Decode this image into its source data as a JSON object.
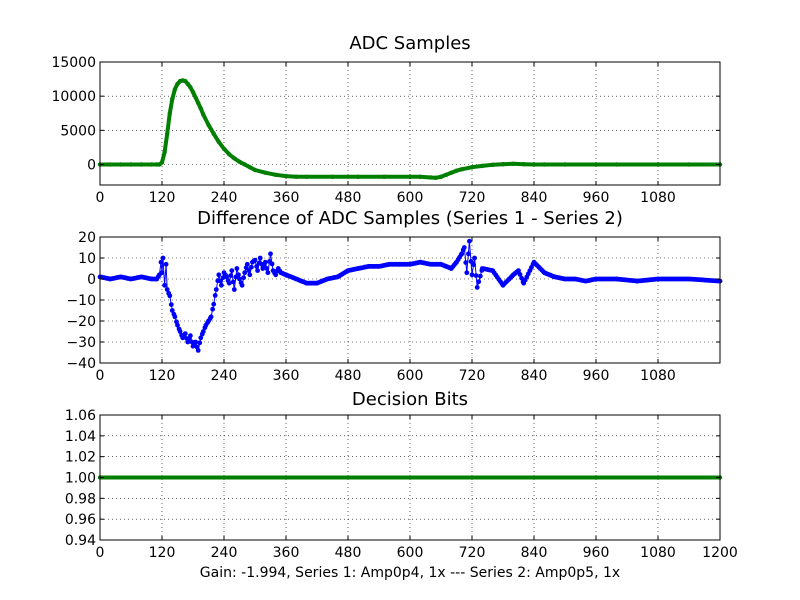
{
  "chart_data": [
    {
      "type": "line",
      "title": "ADC Samples",
      "xlabel": "",
      "ylabel": "",
      "xlim": [
        0,
        1200
      ],
      "ylim": [
        -3000,
        15000
      ],
      "xticks": [
        "0",
        "120",
        "240",
        "360",
        "480",
        "600",
        "720",
        "840",
        "960",
        "1080"
      ],
      "yticks": [
        "0",
        "5000",
        "10000",
        "15000"
      ],
      "grid": true,
      "series": [
        {
          "name": "ADC samples",
          "color": "#007f00",
          "marker": "dot",
          "x": [
            0,
            20,
            40,
            60,
            80,
            100,
            110,
            115,
            120,
            125,
            130,
            135,
            140,
            145,
            150,
            155,
            160,
            165,
            170,
            175,
            180,
            185,
            190,
            195,
            200,
            210,
            220,
            230,
            240,
            250,
            260,
            270,
            280,
            290,
            300,
            320,
            340,
            360,
            380,
            400,
            450,
            500,
            550,
            600,
            620,
            640,
            650,
            660,
            670,
            680,
            690,
            700,
            720,
            740,
            760,
            780,
            800,
            820,
            840,
            860,
            900,
            960,
            1000,
            1080,
            1140,
            1200
          ],
          "y": [
            0,
            0,
            0,
            0,
            0,
            0,
            0,
            0,
            300,
            1800,
            4500,
            7500,
            9600,
            11000,
            11800,
            12200,
            12300,
            12200,
            11800,
            11300,
            10600,
            9800,
            9000,
            8200,
            7300,
            5800,
            4500,
            3300,
            2300,
            1500,
            900,
            400,
            0,
            -400,
            -800,
            -1200,
            -1500,
            -1700,
            -1800,
            -1800,
            -1800,
            -1800,
            -1800,
            -1800,
            -1800,
            -1900,
            -1950,
            -1800,
            -1500,
            -1200,
            -900,
            -700,
            -400,
            -200,
            -50,
            50,
            100,
            50,
            0,
            0,
            0,
            0,
            0,
            0,
            0,
            0
          ]
        }
      ]
    },
    {
      "type": "line",
      "title": "Difference of ADC Samples (Series 1 - Series 2)",
      "xlabel": "",
      "ylabel": "",
      "xlim": [
        0,
        1200
      ],
      "ylim": [
        -40,
        20
      ],
      "xticks": [
        "0",
        "120",
        "240",
        "360",
        "480",
        "600",
        "720",
        "840",
        "960",
        "1080"
      ],
      "yticks": [
        "−40",
        "−30",
        "−20",
        "−10",
        "0",
        "10",
        "20"
      ],
      "grid": true,
      "series": [
        {
          "name": "Series 1 - Series 2",
          "color": "#0000ff",
          "marker": "dot",
          "x": [
            0,
            20,
            40,
            60,
            80,
            100,
            110,
            115,
            118,
            120,
            122,
            125,
            128,
            130,
            135,
            140,
            145,
            150,
            155,
            160,
            165,
            170,
            175,
            180,
            185,
            190,
            195,
            200,
            205,
            210,
            215,
            220,
            225,
            230,
            235,
            240,
            245,
            250,
            255,
            260,
            265,
            270,
            275,
            280,
            285,
            290,
            295,
            300,
            305,
            310,
            315,
            320,
            325,
            330,
            335,
            340,
            345,
            350,
            360,
            380,
            400,
            420,
            440,
            460,
            480,
            500,
            520,
            540,
            560,
            580,
            600,
            620,
            640,
            660,
            670,
            680,
            690,
            700,
            705,
            710,
            715,
            720,
            725,
            730,
            740,
            760,
            780,
            800,
            810,
            820,
            840,
            860,
            880,
            900,
            920,
            940,
            960,
            1000,
            1040,
            1080,
            1140,
            1200
          ],
          "y": [
            1,
            0,
            1,
            0,
            1,
            0,
            0,
            2,
            8,
            3,
            10,
            -3,
            7,
            -5,
            -8,
            -15,
            -18,
            -22,
            -25,
            -28,
            -26,
            -30,
            -27,
            -32,
            -30,
            -34,
            -28,
            -25,
            -22,
            -20,
            -18,
            -12,
            -5,
            2,
            -3,
            3,
            1,
            -2,
            4,
            -5,
            5,
            0,
            -3,
            3,
            7,
            2,
            8,
            9,
            4,
            10,
            5,
            8,
            3,
            12,
            4,
            2,
            5,
            3,
            2,
            0,
            -2,
            -2,
            0,
            1,
            4,
            5,
            6,
            6,
            7,
            7,
            7,
            8,
            7,
            7,
            6,
            5,
            8,
            12,
            15,
            3,
            18,
            2,
            10,
            -4,
            5,
            4,
            -3,
            2,
            4,
            -2,
            8,
            3,
            1,
            0,
            0,
            -1,
            0,
            0,
            -1,
            0,
            0,
            -1
          ]
        }
      ]
    },
    {
      "type": "line",
      "title": "Decision Bits",
      "xlabel": "Gain: -1.994, Series 1: Amp0p4, 1x --- Series 2: Amp0p5, 1x",
      "ylabel": "",
      "xlim": [
        0,
        1200
      ],
      "ylim": [
        0.94,
        1.06
      ],
      "xticks": [
        "0",
        "120",
        "240",
        "360",
        "480",
        "600",
        "720",
        "840",
        "960",
        "1080",
        "1200"
      ],
      "yticks": [
        "0.94",
        "0.96",
        "0.98",
        "1.00",
        "1.02",
        "1.04",
        "1.06"
      ],
      "grid": true,
      "series": [
        {
          "name": "Decision bits",
          "color": "#007f00",
          "marker": "dot",
          "x": [
            0,
            1200
          ],
          "y": [
            1.0,
            1.0
          ]
        }
      ]
    }
  ]
}
